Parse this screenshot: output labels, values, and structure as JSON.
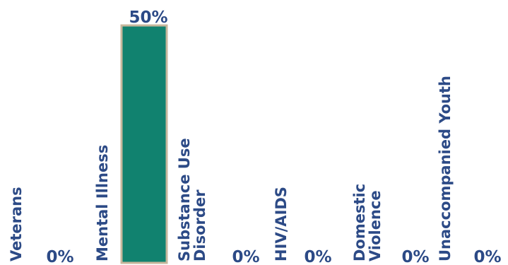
{
  "chart_data": {
    "type": "bar",
    "categories": [
      [
        "Veterans"
      ],
      [
        "Mental Illness"
      ],
      [
        "Substance Use",
        "Disorder"
      ],
      [
        "HIV/AIDS"
      ],
      [
        "Domestic",
        "Violence"
      ],
      [
        "Unaccompanied Youth"
      ]
    ],
    "values": [
      0,
      50,
      0,
      0,
      0,
      0
    ],
    "value_labels": [
      "0%",
      "50%",
      "0%",
      "0%",
      "0%",
      "0%"
    ],
    "ylim": [
      0,
      50
    ],
    "grid": false,
    "bar_color": "#11826f",
    "bar_border_color": "#c7b79c",
    "label_color": "#2c4a86"
  }
}
